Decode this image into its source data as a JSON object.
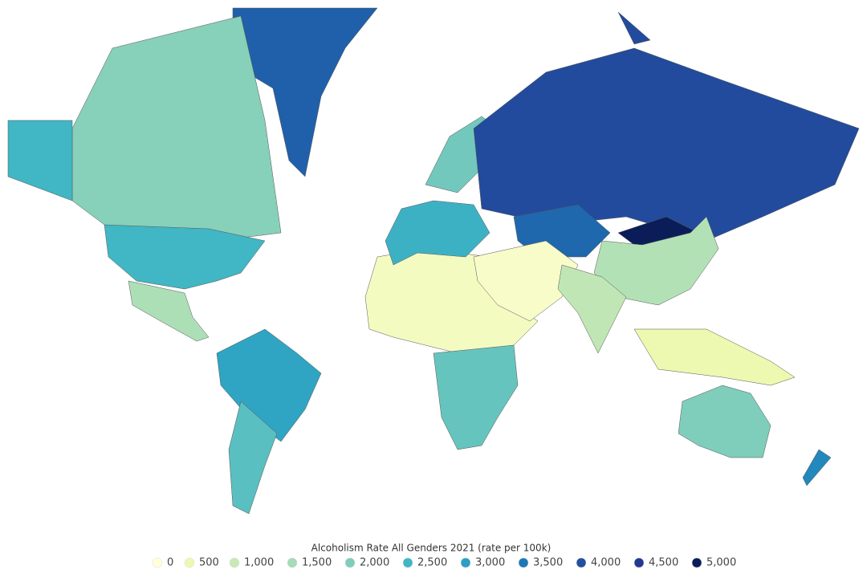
{
  "map": {
    "type": "choropleth",
    "legend": {
      "title": "Alcoholism Rate All Genders 2021 (rate per 100k)",
      "stops": [
        0,
        500,
        {
          "value": 1000,
          "label": "1,000"
        },
        {
          "value": 1500,
          "label": "1,500"
        },
        {
          "value": 2000,
          "label": "2,000"
        },
        {
          "value": 2500,
          "label": "2,500"
        },
        {
          "value": 3000,
          "label": "3,000"
        },
        {
          "value": 3500,
          "label": "3,500"
        },
        {
          "value": 4000,
          "label": "4,000"
        },
        {
          "value": 4500,
          "label": "4,500"
        },
        {
          "value": 5000,
          "label": "5,000"
        }
      ],
      "colors": [
        "#ffffd9",
        "#edf8b1",
        "#c7e9b4",
        "#a6dcb8",
        "#7fcdbb",
        "#41b6c4",
        "#2c9fc3",
        "#1d78b8",
        "#2250a0",
        "#223993",
        "#0b1d58"
      ]
    },
    "regions": [
      {
        "value": 3800
      },
      {
        "value": 1900
      },
      {
        "value": 2500
      },
      {
        "value": 1400
      },
      {
        "value": 2900
      },
      {
        "value": 2300
      },
      {
        "value": 300
      },
      {
        "value": 2200
      },
      {
        "value": 2600
      },
      {
        "value": 2100
      },
      {
        "value": 4100
      },
      {
        "value": 5000
      },
      {
        "value": 3700
      },
      {
        "value": 1300
      },
      {
        "value": 200
      },
      {
        "value": 1100
      },
      {
        "value": 500
      },
      {
        "value": 2000
      },
      {
        "value": 3300
      }
    ]
  }
}
